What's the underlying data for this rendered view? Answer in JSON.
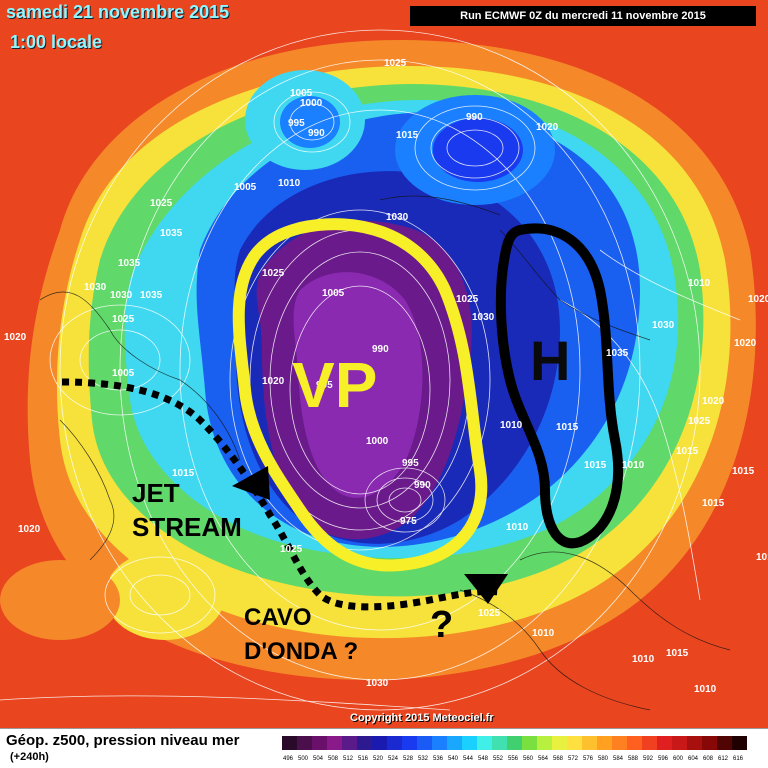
{
  "header": {
    "date": "samedi 21 novembre 2015",
    "time": "1:00 locale",
    "run": "Run ECMWF 0Z du mercredi 11 novembre 2015"
  },
  "footer": {
    "title": "Géop. z500, pression niveau mer",
    "subtitle": "(+240h)",
    "copyright": "Copyright 2015 Meteociel.fr"
  },
  "legend": {
    "labels": [
      "496",
      "500",
      "504",
      "508",
      "512",
      "516",
      "520",
      "524",
      "528",
      "532",
      "536",
      "540",
      "544",
      "548",
      "552",
      "556",
      "560",
      "564",
      "568",
      "572",
      "576",
      "580",
      "584",
      "588",
      "592",
      "596",
      "600",
      "604",
      "608",
      "612",
      "616"
    ],
    "colors": [
      "#2a0a2a",
      "#4b0f4b",
      "#6a0f6a",
      "#8a1a8a",
      "#5a1a8a",
      "#2d1a90",
      "#1a1ab0",
      "#1a2ad0",
      "#1a3af0",
      "#1a5af5",
      "#1a80ff",
      "#1aa8ff",
      "#1ad0ff",
      "#40f0e8",
      "#40e0b0",
      "#40d070",
      "#7ae040",
      "#b8f040",
      "#e8f040",
      "#ffe040",
      "#ffc030",
      "#ffa020",
      "#ff8020",
      "#ff6020",
      "#f04020",
      "#e02020",
      "#c81818",
      "#a81010",
      "#880808",
      "#500404",
      "#200000"
    ]
  },
  "annotations": {
    "vp": "VP",
    "h": "H",
    "jet1": "JET",
    "jet2": "STREAM",
    "cavo1": "CAVO",
    "cavo2": "D'ONDA ?",
    "question": "?"
  },
  "pressure_labels": [
    {
      "text": "1025"
    },
    {
      "text": "1005"
    },
    {
      "text": "1000"
    },
    {
      "text": "995"
    },
    {
      "text": "990"
    },
    {
      "text": "990"
    },
    {
      "text": "1015"
    },
    {
      "text": "1020"
    },
    {
      "text": "1005"
    },
    {
      "text": "1010"
    },
    {
      "text": "1025"
    },
    {
      "text": "1035"
    },
    {
      "text": "1035"
    },
    {
      "text": "1030"
    },
    {
      "text": "1030"
    },
    {
      "text": "1035"
    },
    {
      "text": "1025"
    },
    {
      "text": "1020"
    },
    {
      "text": "1005"
    },
    {
      "text": "1025"
    },
    {
      "text": "1005"
    },
    {
      "text": "1020"
    },
    {
      "text": "990"
    },
    {
      "text": "995"
    },
    {
      "text": "1000"
    },
    {
      "text": "995"
    },
    {
      "text": "990"
    },
    {
      "text": "975"
    },
    {
      "text": "1030"
    },
    {
      "text": "1025"
    },
    {
      "text": "1030"
    },
    {
      "text": "1010"
    },
    {
      "text": "1015"
    },
    {
      "text": "1010"
    },
    {
      "text": "1030"
    },
    {
      "text": "1035"
    },
    {
      "text": "1010"
    },
    {
      "text": "1020"
    },
    {
      "text": "1020"
    },
    {
      "text": "1025"
    },
    {
      "text": "1015"
    },
    {
      "text": "1020"
    },
    {
      "text": "1015"
    },
    {
      "text": "1015"
    },
    {
      "text": "1010"
    },
    {
      "text": "1010"
    },
    {
      "text": "1015"
    },
    {
      "text": "1015"
    },
    {
      "text": "1025"
    },
    {
      "text": "1010"
    },
    {
      "text": "1015"
    },
    {
      "text": "1030"
    },
    {
      "text": "1020"
    },
    {
      "text": "1010"
    },
    {
      "text": "1015"
    },
    {
      "text": "1025"
    }
  ]
}
